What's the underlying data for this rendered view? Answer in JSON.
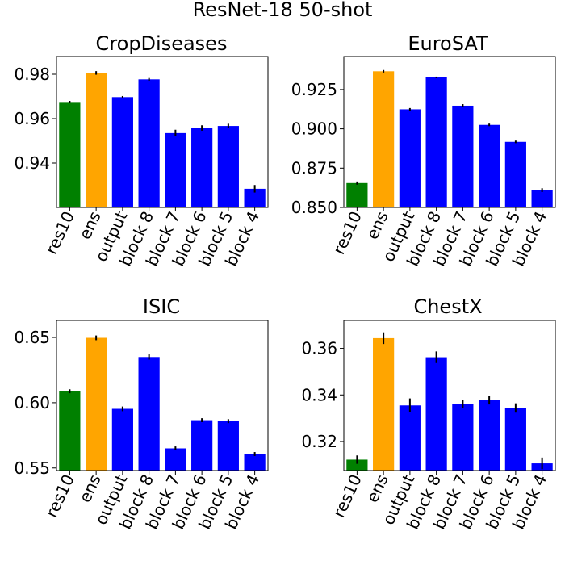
{
  "figure": {
    "title": "ResNet-18 50-shot"
  },
  "chart_data": [
    {
      "type": "bar",
      "title": "CropDiseases",
      "categories": [
        "res10",
        "ens",
        "output",
        "block 8",
        "block 7",
        "block 6",
        "block 5",
        "block 4"
      ],
      "values": [
        0.9675,
        0.9806,
        0.9697,
        0.9777,
        0.9535,
        0.9558,
        0.9567,
        0.9284
      ],
      "errors": [
        0.0005,
        0.0008,
        0.0005,
        0.0006,
        0.0015,
        0.0012,
        0.001,
        0.0017
      ],
      "colors": [
        "#008000",
        "#ffa500",
        "#0000ff",
        "#0000ff",
        "#0000ff",
        "#0000ff",
        "#0000ff",
        "#0000ff"
      ],
      "ylim": [
        0.92,
        0.988
      ],
      "yticks": [
        0.94,
        0.96,
        0.98
      ],
      "ytick_labels": [
        "0.94",
        "0.96",
        "0.98"
      ]
    },
    {
      "type": "bar",
      "title": "EuroSAT",
      "categories": [
        "res10",
        "ens",
        "output",
        "block 8",
        "block 7",
        "block 6",
        "block 5",
        "block 4"
      ],
      "values": [
        0.8655,
        0.9366,
        0.9124,
        0.9327,
        0.9147,
        0.9025,
        0.8917,
        0.861
      ],
      "errors": [
        0.001,
        0.0008,
        0.0008,
        0.0005,
        0.001,
        0.0008,
        0.0008,
        0.0012
      ],
      "colors": [
        "#008000",
        "#ffa500",
        "#0000ff",
        "#0000ff",
        "#0000ff",
        "#0000ff",
        "#0000ff",
        "#0000ff"
      ],
      "ylim": [
        0.85,
        0.946
      ],
      "yticks": [
        0.85,
        0.875,
        0.9,
        0.925
      ],
      "ytick_labels": [
        "0.850",
        "0.875",
        "0.900",
        "0.925"
      ]
    },
    {
      "type": "bar",
      "title": "ISIC",
      "categories": [
        "res10",
        "ens",
        "output",
        "block 8",
        "block 7",
        "block 6",
        "block 5",
        "block 4"
      ],
      "values": [
        0.6088,
        0.6497,
        0.5953,
        0.635,
        0.565,
        0.5866,
        0.5859,
        0.5607
      ],
      "errors": [
        0.0015,
        0.0018,
        0.0018,
        0.002,
        0.0015,
        0.0015,
        0.0015,
        0.0015
      ],
      "colors": [
        "#008000",
        "#ffa500",
        "#0000ff",
        "#0000ff",
        "#0000ff",
        "#0000ff",
        "#0000ff",
        "#0000ff"
      ],
      "ylim": [
        0.548,
        0.663
      ],
      "yticks": [
        0.55,
        0.6,
        0.65
      ],
      "ytick_labels": [
        "0.55",
        "0.60",
        "0.65"
      ]
    },
    {
      "type": "bar",
      "title": "ChestX",
      "categories": [
        "res10",
        "ens",
        "output",
        "block 8",
        "block 7",
        "block 6",
        "block 5",
        "block 4"
      ],
      "values": [
        0.3122,
        0.3644,
        0.3355,
        0.3562,
        0.3361,
        0.3377,
        0.3344,
        0.3106
      ],
      "errors": [
        0.0018,
        0.0025,
        0.003,
        0.0025,
        0.0018,
        0.0018,
        0.002,
        0.0025
      ],
      "colors": [
        "#008000",
        "#ffa500",
        "#0000ff",
        "#0000ff",
        "#0000ff",
        "#0000ff",
        "#0000ff",
        "#0000ff"
      ],
      "ylim": [
        0.3075,
        0.372
      ],
      "yticks": [
        0.32,
        0.34,
        0.36
      ],
      "ytick_labels": [
        "0.32",
        "0.34",
        "0.36"
      ]
    }
  ]
}
